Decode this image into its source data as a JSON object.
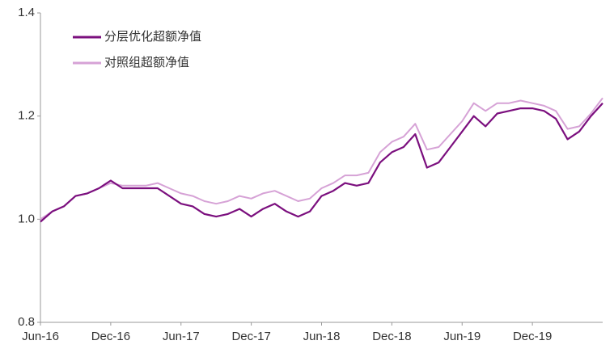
{
  "chart_data": {
    "type": "line",
    "categories": [
      "Jun-16",
      null,
      null,
      null,
      null,
      null,
      "Dec-16",
      null,
      null,
      null,
      null,
      null,
      "Jun-17",
      null,
      null,
      null,
      null,
      null,
      "Dec-17",
      null,
      null,
      null,
      null,
      null,
      "Jun-18",
      null,
      null,
      null,
      null,
      null,
      "Dec-18",
      null,
      null,
      null,
      null,
      null,
      "Jun-19",
      null,
      null,
      null,
      null,
      null,
      "Dec-19",
      null,
      null,
      null,
      null,
      null,
      null
    ],
    "series": [
      {
        "name": "分层优化超额净值",
        "color": "#7b0f7e",
        "values": [
          0.995,
          1.015,
          1.025,
          1.045,
          1.05,
          1.06,
          1.075,
          1.06,
          1.06,
          1.06,
          1.06,
          1.045,
          1.03,
          1.025,
          1.01,
          1.005,
          1.01,
          1.02,
          1.005,
          1.02,
          1.03,
          1.015,
          1.005,
          1.015,
          1.045,
          1.055,
          1.07,
          1.065,
          1.07,
          1.11,
          1.13,
          1.14,
          1.165,
          1.1,
          1.11,
          1.14,
          1.17,
          1.2,
          1.18,
          1.205,
          1.21,
          1.215,
          1.215,
          1.21,
          1.195,
          1.155,
          1.17,
          1.2,
          1.225
        ]
      },
      {
        "name": "对照组超额净值",
        "color": "#d6a2d6",
        "values": [
          1.0,
          1.015,
          1.025,
          1.045,
          1.05,
          1.06,
          1.07,
          1.065,
          1.065,
          1.065,
          1.07,
          1.06,
          1.05,
          1.045,
          1.035,
          1.03,
          1.035,
          1.045,
          1.04,
          1.05,
          1.055,
          1.045,
          1.035,
          1.04,
          1.06,
          1.07,
          1.085,
          1.085,
          1.09,
          1.13,
          1.15,
          1.16,
          1.185,
          1.135,
          1.14,
          1.165,
          1.19,
          1.225,
          1.21,
          1.225,
          1.225,
          1.23,
          1.225,
          1.22,
          1.21,
          1.175,
          1.18,
          1.205,
          1.235
        ]
      }
    ],
    "ylim": [
      0.8,
      1.4
    ],
    "yticks": [
      0.8,
      {
        "value": 1,
        "label": "1.0"
      },
      1.2,
      1.4
    ],
    "grid": false,
    "legend": "top-left"
  }
}
